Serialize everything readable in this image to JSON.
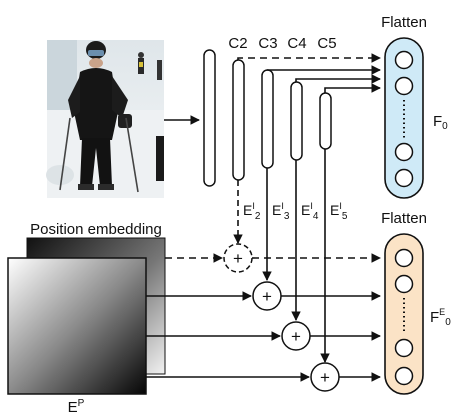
{
  "labels": {
    "c2": "C2",
    "c3": "C3",
    "c4": "C4",
    "c5": "C5",
    "flatten_top": "Flatten",
    "flatten_bottom": "Flatten",
    "f0_main": "F",
    "f0_sub": "0",
    "fe0_main": "F",
    "fe0_sup": "E",
    "fe0_sub": "0",
    "position_embedding": "Position embedding",
    "ep_main": "E",
    "ep_sup": "P",
    "e_main": "E",
    "e_sup": "I",
    "e2_sub": "2",
    "e3_sub": "3",
    "e4_sub": "4",
    "e5_sub": "5",
    "plus": "+"
  },
  "colors": {
    "flatten_top_fill": "#cfeaf7",
    "flatten_bottom_fill": "#fbe3c6",
    "stroke": "#111111"
  }
}
